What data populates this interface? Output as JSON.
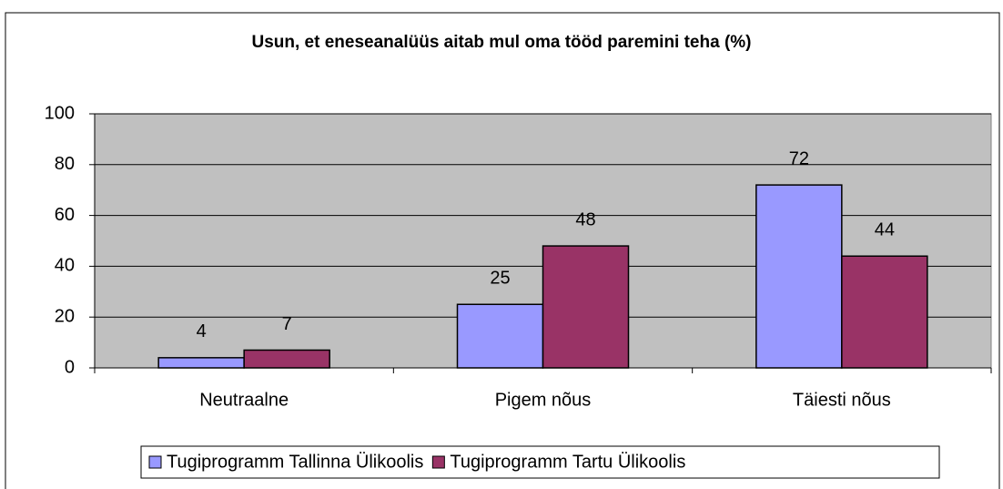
{
  "chart_data": {
    "type": "bar",
    "title": "Usun, et eneseanalüüs aitab mul oma tööd paremini teha (%)",
    "categories": [
      "Neutraalne",
      "Pigem nõus",
      "Täiesti nõus"
    ],
    "series": [
      {
        "name": "Tugiprogramm Tallinna Ülikoolis",
        "color": "#9999ff",
        "values": [
          4,
          25,
          72
        ]
      },
      {
        "name": "Tugiprogramm Tartu Ülikoolis",
        "color": "#993366",
        "values": [
          7,
          48,
          44
        ]
      }
    ],
    "ylim": [
      0,
      100
    ],
    "yticks": [
      0,
      20,
      40,
      60,
      80,
      100
    ],
    "grid": true,
    "legend": "bottom"
  }
}
